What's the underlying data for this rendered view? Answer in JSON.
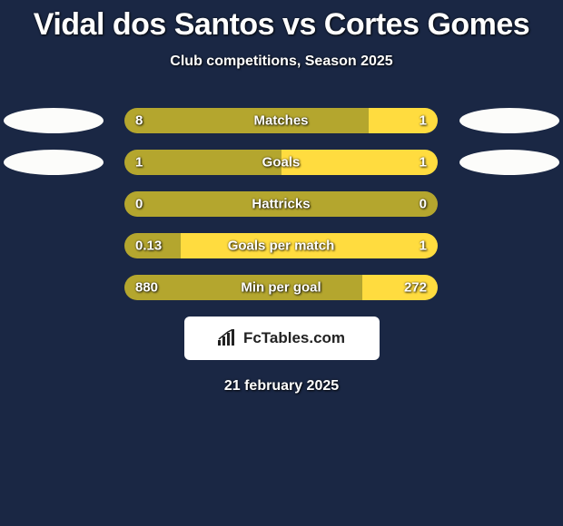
{
  "title": "Vidal dos Santos vs Cortes Gomes",
  "subtitle": "Club competitions, Season 2025",
  "footer_date": "21 february 2025",
  "colors": {
    "background": "#1a2744",
    "bar_left": "#b4a62e",
    "bar_right": "#ffdc3f",
    "ellipse": "#fcfcfa",
    "logo_bg": "#ffffff",
    "logo_text": "#222222",
    "text": "#ffffff"
  },
  "rows": [
    {
      "label": "Matches",
      "left_value": "8",
      "right_value": "1",
      "left_pct": 78,
      "right_pct": 22,
      "show_left_ellipse": true,
      "show_right_ellipse": true
    },
    {
      "label": "Goals",
      "left_value": "1",
      "right_value": "1",
      "left_pct": 50,
      "right_pct": 50,
      "show_left_ellipse": true,
      "show_right_ellipse": true
    },
    {
      "label": "Hattricks",
      "left_value": "0",
      "right_value": "0",
      "left_pct": 100,
      "right_pct": 0,
      "show_left_ellipse": false,
      "show_right_ellipse": false
    },
    {
      "label": "Goals per match",
      "left_value": "0.13",
      "right_value": "1",
      "left_pct": 18,
      "right_pct": 82,
      "show_left_ellipse": false,
      "show_right_ellipse": false
    },
    {
      "label": "Min per goal",
      "left_value": "880",
      "right_value": "272",
      "left_pct": 76,
      "right_pct": 24,
      "show_left_ellipse": false,
      "show_right_ellipse": false
    }
  ],
  "logo": {
    "text": "FcTables.com"
  }
}
